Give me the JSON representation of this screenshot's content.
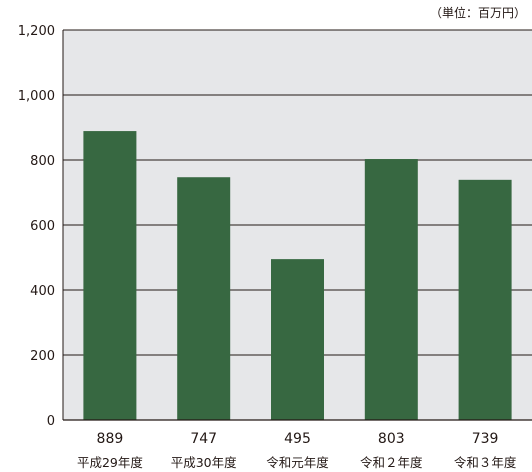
{
  "chart_data": {
    "type": "bar",
    "unit_note": "（単位：百万円）",
    "categories": [
      "平成29年度",
      "平成30年度",
      "令和元年度",
      "令和２年度",
      "令和３年度"
    ],
    "values": [
      889,
      747,
      495,
      803,
      739
    ],
    "value_labels": [
      "889",
      "747",
      "495",
      "803",
      "739"
    ],
    "ylim": [
      0,
      1200
    ],
    "yticks": [
      0,
      200,
      400,
      600,
      800,
      1000,
      1200
    ],
    "ytick_labels": [
      "0",
      "200",
      "400",
      "600",
      "800",
      "1,000",
      "1,200"
    ],
    "grid": true,
    "legend": "none",
    "colors": {
      "bar": "#376841",
      "plot_background": "#e6e7e9",
      "gridline": "#231815",
      "text": "#231815"
    }
  }
}
